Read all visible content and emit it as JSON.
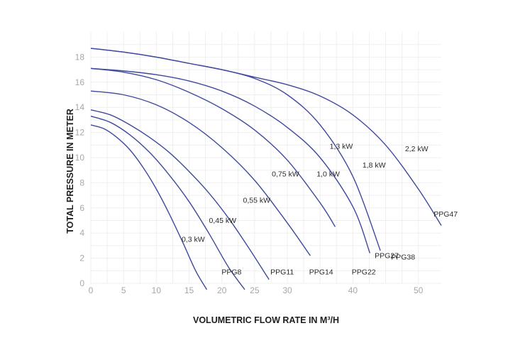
{
  "chart_data": {
    "type": "line",
    "title": "",
    "xlabel": "VOLUMETRIC FLOW RATE IN M³/H",
    "ylabel": "TOTAL PRESSURE IN METER",
    "xlim": [
      0,
      53.5
    ],
    "ylim": [
      0,
      20
    ],
    "x_ticks": [
      0,
      5,
      10,
      15,
      20,
      25,
      30,
      40,
      50
    ],
    "y_ticks": [
      0,
      2,
      4,
      6,
      8,
      10,
      12,
      14,
      16,
      18
    ],
    "grid": true,
    "line_color": "#3f4a9b",
    "series": [
      {
        "model": "PPG8",
        "power": "0,3 kW",
        "x": [
          0,
          2,
          4,
          6,
          8,
          10,
          12,
          14,
          16,
          17.7
        ],
        "y": [
          12.6,
          12.3,
          11.6,
          10.6,
          9.2,
          7.5,
          5.5,
          3.3,
          1.0,
          -0.5
        ]
      },
      {
        "model": "PPG11",
        "power": "0,45 kW",
        "x": [
          0,
          3,
          6,
          9,
          12,
          15,
          18,
          21,
          23.5
        ],
        "y": [
          13.3,
          12.8,
          11.8,
          10.4,
          8.6,
          6.5,
          4.0,
          1.3,
          -0.5
        ]
      },
      {
        "model": "PPG14",
        "power": "0,55 kW",
        "x": [
          0,
          3,
          6,
          9,
          12,
          15,
          18,
          21,
          24,
          27.2
        ],
        "y": [
          13.8,
          13.4,
          12.6,
          11.6,
          10.4,
          8.9,
          7.2,
          5.2,
          2.9,
          0.3
        ]
      },
      {
        "model": "PPG22",
        "power": "0,75 kW",
        "x": [
          0,
          5,
          10,
          15,
          20,
          25,
          30,
          33.5
        ],
        "y": [
          15.3,
          15.0,
          14.2,
          12.8,
          10.8,
          8.2,
          4.8,
          2.2
        ]
      },
      {
        "model": "PPG27",
        "power": "1,0 kW",
        "x": [
          0,
          5,
          10,
          15,
          20,
          25,
          30,
          35,
          37.3
        ],
        "y": [
          17.1,
          16.8,
          16.2,
          15.2,
          13.9,
          12.2,
          9.8,
          6.4,
          4.5
        ]
      },
      {
        "model": "PPG38",
        "power": "1,3 kW",
        "x": [
          0,
          5,
          10,
          15,
          20,
          25,
          30,
          35,
          40,
          42.6
        ],
        "y": [
          17.1,
          16.9,
          16.6,
          16.1,
          15.3,
          14.1,
          12.4,
          10.0,
          6.1,
          2.4
        ]
      },
      {
        "model": "PPG47",
        "power": "1,8 kW",
        "x": [
          0,
          5,
          10,
          15,
          20,
          25,
          30,
          35,
          40,
          44.2
        ],
        "y": [
          18.7,
          18.4,
          18.0,
          17.5,
          17.0,
          16.3,
          15.0,
          12.6,
          8.5,
          2.6
        ]
      },
      {
        "model": "",
        "power": "2,2 kW",
        "x": [
          0,
          5,
          10,
          15,
          20,
          25,
          30,
          35,
          40,
          45,
          50,
          53.5
        ],
        "y": [
          18.7,
          18.4,
          18.0,
          17.5,
          17.0,
          16.4,
          15.8,
          14.9,
          13.4,
          11.0,
          7.5,
          4.6
        ]
      }
    ],
    "annotations": [
      {
        "text": "0,3 kW",
        "x": 17.4,
        "y": 3.3
      },
      {
        "text": "0,45 kW",
        "x": 22.2,
        "y": 4.8
      },
      {
        "text": "0,55 kW",
        "x": 27.4,
        "y": 6.4
      },
      {
        "text": "0,75 kW",
        "x": 31.8,
        "y": 8.5
      },
      {
        "text": "1,0 kW",
        "x": 38.0,
        "y": 8.5
      },
      {
        "text": "1,3 kW",
        "x": 40.0,
        "y": 10.7
      },
      {
        "text": "1,8 kW",
        "x": 45.0,
        "y": 9.2
      },
      {
        "text": "2,2 kW",
        "x": 51.5,
        "y": 10.5
      },
      {
        "text": "PPG8",
        "x": 23.0,
        "y": 0.7
      },
      {
        "text": "PPG11",
        "x": 31.0,
        "y": 0.7
      },
      {
        "text": "PPG14",
        "x": 37.0,
        "y": 0.7
      },
      {
        "text": "PPG22",
        "x": 43.5,
        "y": 0.7
      },
      {
        "text": "PPG27",
        "x": 47.0,
        "y": 2.0
      },
      {
        "text": "PPG38",
        "x": 49.5,
        "y": 1.9
      },
      {
        "text": "PPG47",
        "x": 56.0,
        "y": 5.3
      }
    ]
  }
}
